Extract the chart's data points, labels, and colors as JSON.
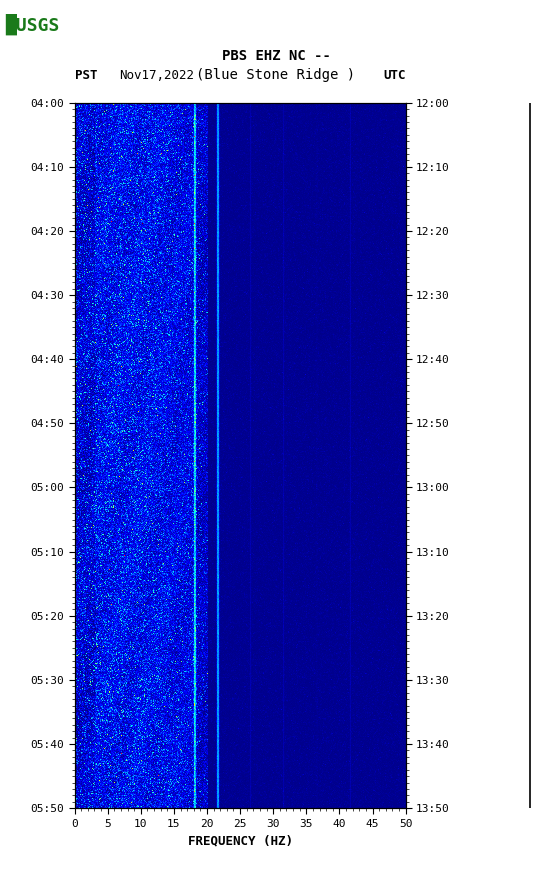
{
  "title_line1": "PBS EHZ NC --",
  "title_line2": "(Blue Stone Ridge )",
  "date_label": "Nov17,2022",
  "pst_label": "PST",
  "utc_label": "UTC",
  "xlabel": "FREQUENCY (HZ)",
  "freq_min": 0,
  "freq_max": 50,
  "freq_ticks": [
    0,
    5,
    10,
    15,
    20,
    25,
    30,
    35,
    40,
    45,
    50
  ],
  "pst_ticks": [
    "04:00",
    "04:10",
    "04:20",
    "04:30",
    "04:40",
    "04:50",
    "05:00",
    "05:10",
    "05:20",
    "05:30",
    "05:40",
    "05:50"
  ],
  "utc_ticks": [
    "12:00",
    "12:10",
    "12:20",
    "12:30",
    "12:40",
    "12:50",
    "13:00",
    "13:10",
    "13:20",
    "13:30",
    "13:40",
    "13:50"
  ],
  "background_color": "#ffffff",
  "fig_width": 5.52,
  "fig_height": 8.93,
  "dpi": 100,
  "seed": 1234,
  "n_time": 720,
  "n_freq": 500,
  "broadband_cutoff_hz": 20.0,
  "bright_red_lines": [
    18.0,
    21.5
  ],
  "faint_lines": [
    26.5,
    31.5,
    36.5,
    41.5
  ],
  "vmin": 0.0,
  "vmax": 1.0,
  "colormap": "jet"
}
